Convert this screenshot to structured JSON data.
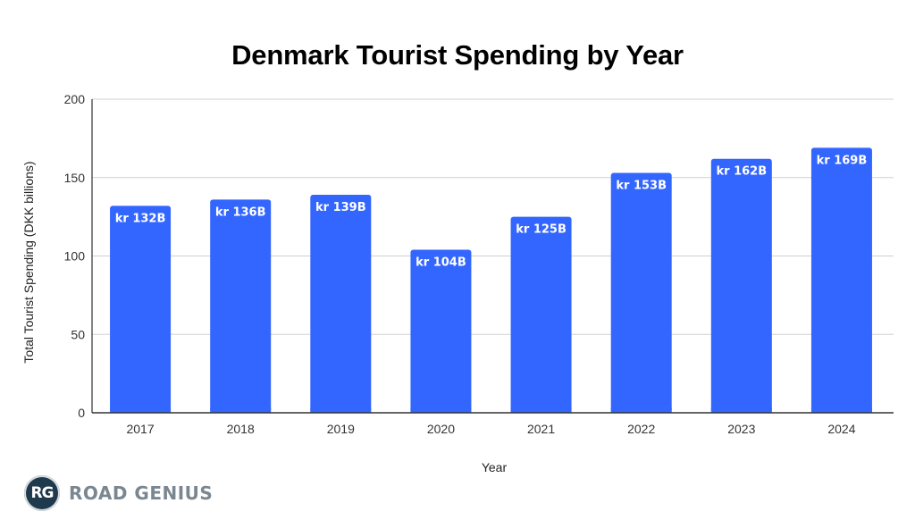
{
  "chart_data": {
    "type": "bar",
    "title": "Denmark Tourist Spending by Year",
    "xlabel": "Year",
    "ylabel": "Total Tourist Spending (DKK billions)",
    "categories": [
      "2017",
      "2018",
      "2019",
      "2020",
      "2021",
      "2022",
      "2023",
      "2024"
    ],
    "values": [
      132,
      136,
      139,
      104,
      125,
      153,
      162,
      169
    ],
    "data_labels": [
      "kr 132B",
      "kr 136B",
      "kr 139B",
      "kr 104B",
      "kr 125B",
      "kr 153B",
      "kr 162B",
      "kr 169B"
    ],
    "ylim": [
      0,
      200
    ],
    "yticks": [
      0,
      50,
      100,
      150,
      200
    ],
    "grid": true,
    "legend": "none",
    "bar_color": "#3366ff"
  },
  "branding": {
    "logo_initials": "RG",
    "logo_text": "ROAD GENIUS"
  }
}
